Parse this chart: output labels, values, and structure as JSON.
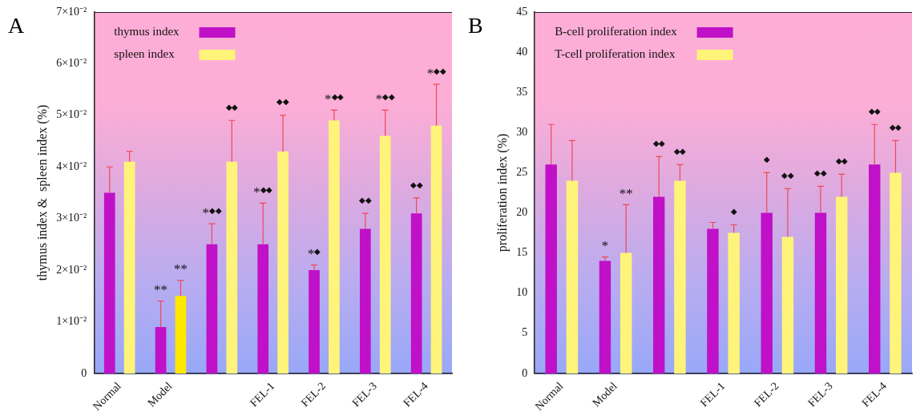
{
  "chart_data": [
    {
      "type": "bar",
      "title": "A",
      "ylabel": "thymus index &  spleen index (%)",
      "legend": "top left",
      "categories": [
        "Normal",
        "Model",
        null,
        "FEL-1",
        "FEL-2",
        "FEL-3",
        "FEL-4"
      ],
      "series": [
        {
          "name": "thymus index",
          "color": "#c010c8",
          "values": [
            0.035,
            0.009,
            0.025,
            0.025,
            0.02,
            0.028,
            0.031
          ],
          "errors": [
            [
              0.035,
              0.04
            ],
            [
              0.009,
              0.014
            ],
            [
              0.025,
              0.029
            ],
            [
              0.025,
              0.033
            ],
            [
              0.02,
              0.021
            ],
            [
              0.028,
              0.031
            ],
            [
              0.031,
              0.034
            ]
          ]
        },
        {
          "name": "spleen index",
          "color": "#fff47a",
          "colors": [
            "#fff47a",
            "#ffe800",
            "#fff47a",
            "#fff47a",
            "#fff47a",
            "#fff47a",
            "#fff47a"
          ],
          "values": [
            0.041,
            0.015,
            0.041,
            0.043,
            0.049,
            0.046,
            0.048
          ],
          "errors": [
            [
              0.041,
              0.043
            ],
            [
              0.015,
              0.018
            ],
            [
              0.041,
              0.049
            ],
            [
              0.043,
              0.05
            ],
            [
              0.049,
              0.051
            ],
            [
              0.046,
              0.051
            ],
            [
              0.048,
              0.056
            ]
          ]
        }
      ],
      "ylim": [
        0,
        0.07
      ],
      "yticks": [
        0,
        {
          "value": 0.01,
          "label": "1×10⁻²"
        },
        {
          "value": 0.02,
          "label": "2×10⁻²"
        },
        {
          "value": 0.03,
          "label": "3×10⁻²"
        },
        {
          "value": 0.04,
          "label": "4×10⁻²"
        },
        {
          "value": 0.05,
          "label": "5×10⁻²"
        },
        {
          "value": 0.06,
          "label": "6×10⁻²"
        },
        {
          "value": 0.07,
          "label": "7×10⁻²"
        }
      ],
      "annotations": [
        "**",
        "**",
        "*◆◆",
        "◆◆",
        "*◆◆",
        "◆◆",
        "*◆",
        "*◆◆",
        "◆◆",
        "*◆◆",
        "◆◆",
        "*◆◆"
      ]
    },
    {
      "type": "bar",
      "title": "B",
      "ylabel": "proliferation index (%)",
      "legend": "top left",
      "categories": [
        "Normal",
        "Model",
        null,
        "FEL-1",
        "FEL-2",
        "FEL-3",
        "FEL-4"
      ],
      "series": [
        {
          "name": "B-cell proliferation index",
          "color": "#c010c8",
          "values": [
            26,
            14,
            22,
            18,
            20,
            20,
            26
          ],
          "errors": [
            [
              26,
              31
            ],
            [
              14,
              14.5
            ],
            [
              22,
              27
            ],
            [
              18,
              18.8
            ],
            [
              20,
              25
            ],
            [
              20,
              23.3
            ],
            [
              26,
              31
            ]
          ]
        },
        {
          "name": "T-cell proliferation index",
          "color": "#fff47a",
          "values": [
            24,
            15,
            24,
            17.5,
            17,
            22,
            25
          ],
          "errors": [
            [
              24,
              29
            ],
            [
              15,
              21
            ],
            [
              24,
              26
            ],
            [
              17.5,
              18.5
            ],
            [
              17,
              23
            ],
            [
              22,
              24.8
            ],
            [
              25,
              29
            ]
          ]
        }
      ],
      "ylim": [
        0,
        45
      ],
      "yticks": [
        0,
        5,
        10,
        15,
        20,
        25,
        30,
        35,
        40,
        45
      ],
      "annotations": [
        "*",
        "**",
        "◆◆",
        "◆◆",
        null,
        "◆",
        "◆",
        "◆◆",
        "◆◆",
        "◆◆",
        "◆◆",
        "◆◆"
      ]
    }
  ]
}
